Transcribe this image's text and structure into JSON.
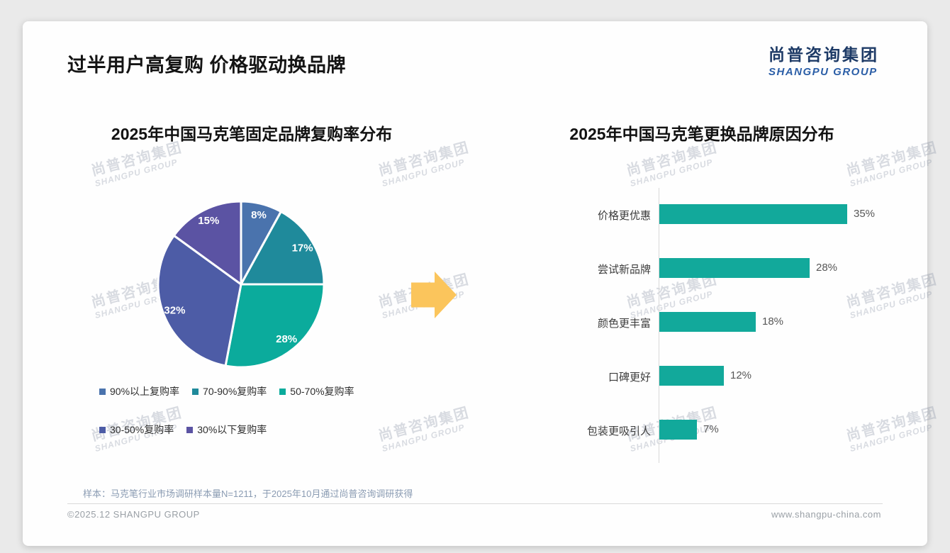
{
  "page": {
    "title": "过半用户高复购 价格驱动换品牌"
  },
  "logo": {
    "cn": "尚普咨询集团",
    "en": "SHANGPU GROUP",
    "cn_color": "#1d3a66",
    "en_color": "#2b5ea7"
  },
  "watermark": {
    "cn": "尚普咨询集团",
    "en": "SHANGPU GROUP"
  },
  "arrow": {
    "color": "#fbc55c",
    "direction": "right"
  },
  "footer": {
    "sample_note": "样本：马克笔行业市场调研样本量N=1211，于2025年10月通过尚普咨询调研获得",
    "copyright": "©2025.12 SHANGPU GROUP",
    "website": "www.shangpu-china.com"
  },
  "chart_data": [
    {
      "type": "pie",
      "title": "2025年中国马克笔固定品牌复购率分布",
      "labels": [
        "90%以上复购率",
        "70-90%复购率",
        "50-70%复购率",
        "30-50%复购率",
        "30%以下复购率"
      ],
      "values": [
        8,
        17,
        28,
        32,
        15
      ],
      "value_labels": [
        "8%",
        "17%",
        "28%",
        "32%",
        "15%"
      ],
      "colors": [
        "#4a73ad",
        "#1f8a9b",
        "#0bab9c",
        "#4d5ca6",
        "#5b53a3"
      ],
      "start_angle_deg": -90,
      "direction": "clockwise",
      "slice_border_color": "#ffffff",
      "legend_position": "bottom",
      "legend_rows": [
        3,
        2
      ]
    },
    {
      "type": "bar",
      "orientation": "horizontal",
      "title": "2025年中国马克笔更换品牌原因分布",
      "categories": [
        "价格更优惠",
        "尝试新品牌",
        "颜色更丰富",
        "口碑更好",
        "包装更吸引人"
      ],
      "values": [
        35,
        28,
        18,
        12,
        7
      ],
      "value_labels": [
        "35%",
        "28%",
        "18%",
        "12%",
        "7%"
      ],
      "bar_color": "#12a99b",
      "xlim": [
        0,
        35
      ],
      "grid": false,
      "axis_line": true
    }
  ]
}
